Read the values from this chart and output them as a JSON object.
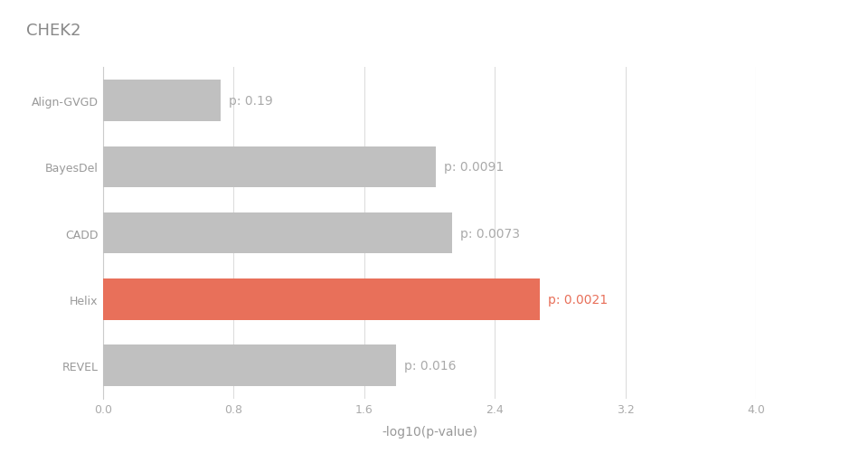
{
  "title": "CHEK2",
  "categories": [
    "Align-GVGD",
    "BayesDel",
    "CADD",
    "Helix",
    "REVEL"
  ],
  "values": [
    0.7212,
    2.041,
    2.1367,
    2.6778,
    1.7959
  ],
  "labels": [
    "p: 0.19",
    "p: 0.0091",
    "p: 0.0073",
    "p: 0.0021",
    "p: 0.016"
  ],
  "bar_colors": [
    "#c0c0c0",
    "#c0c0c0",
    "#c0c0c0",
    "#e8705a",
    "#c0c0c0"
  ],
  "label_colors": [
    "#aaaaaa",
    "#aaaaaa",
    "#aaaaaa",
    "#e8705a",
    "#aaaaaa"
  ],
  "xlabel": "-log10(p-value)",
  "xlim": [
    0.0,
    4.0
  ],
  "xticks": [
    0.0,
    0.8,
    1.6,
    2.4,
    3.2,
    4.0
  ],
  "background_color": "#ffffff",
  "grid_color": "#dddddd",
  "title_fontsize": 13,
  "xlabel_fontsize": 10,
  "tick_fontsize": 9,
  "label_fontsize": 10,
  "bar_height": 0.62
}
